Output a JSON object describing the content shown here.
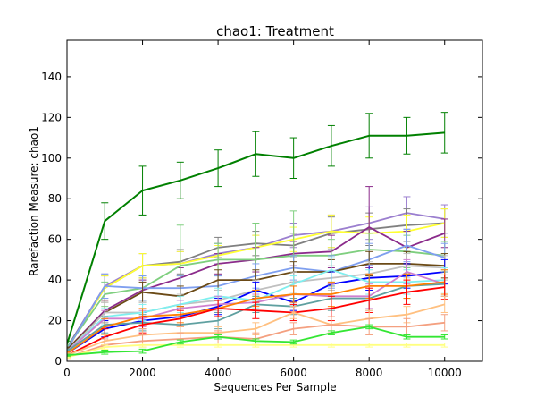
{
  "chart_data": {
    "type": "line",
    "title": "chao1: Treatment",
    "xlabel": "Sequences Per Sample",
    "ylabel": "Rarefaction Measure: chao1",
    "xlim": [
      0,
      11000
    ],
    "ylim": [
      0,
      158
    ],
    "xticks": [
      0,
      2000,
      4000,
      6000,
      8000,
      10000
    ],
    "yticks": [
      0,
      20,
      40,
      60,
      80,
      100,
      120,
      140
    ],
    "grid": false,
    "legend": "none",
    "x": [
      10,
      1000,
      2000,
      3000,
      4000,
      5000,
      6000,
      7000,
      8000,
      9000,
      10000
    ],
    "series": [
      {
        "color": "#008000",
        "values": [
          9,
          69,
          84,
          89,
          95,
          102,
          100,
          106,
          111,
          111,
          112.5
        ],
        "error": [
          1,
          9,
          12,
          9,
          9,
          11,
          10,
          10,
          11,
          9,
          10
        ]
      },
      {
        "color": "#9b7fcf",
        "values": [
          7,
          37,
          47,
          48,
          53,
          56,
          62,
          64,
          68,
          73,
          70
        ],
        "error": [
          1,
          6,
          6,
          6,
          5,
          6,
          6,
          8,
          8,
          8,
          7
        ]
      },
      {
        "color": "#808080",
        "values": [
          7,
          36,
          47,
          49,
          56,
          58,
          57,
          63,
          65,
          67,
          68
        ],
        "error": [
          1,
          6,
          6,
          6,
          5,
          6,
          6,
          8,
          8,
          8,
          7
        ]
      },
      {
        "color": "#ffff33",
        "values": [
          6,
          36,
          47,
          48,
          52,
          56,
          60,
          64,
          63,
          64,
          68
        ],
        "error": [
          1,
          6,
          6,
          6,
          5,
          6,
          6,
          8,
          8,
          8,
          7
        ]
      },
      {
        "color": "#8b2b8b",
        "values": [
          6,
          25,
          35,
          41,
          48,
          50,
          53,
          54,
          66,
          56,
          63
        ],
        "error": [
          1,
          5,
          5,
          5,
          5,
          6,
          6,
          8,
          20,
          8,
          7
        ]
      },
      {
        "color": "#7fcf7f",
        "values": [
          7,
          33,
          36,
          47,
          50,
          50,
          52,
          52,
          55,
          54,
          52
        ],
        "error": [
          1,
          6,
          6,
          20,
          8,
          18,
          22,
          8,
          8,
          8,
          7
        ]
      },
      {
        "color": "#7f9fef",
        "values": [
          6,
          37,
          36,
          36,
          37,
          42,
          46,
          44,
          50,
          57,
          51
        ],
        "error": [
          1,
          6,
          6,
          6,
          5,
          6,
          6,
          8,
          8,
          8,
          7
        ]
      },
      {
        "color": "#6b4a16",
        "values": [
          6,
          24,
          34,
          32,
          40,
          40,
          44,
          44,
          48,
          48,
          47
        ],
        "error": [
          1,
          5,
          5,
          5,
          5,
          5,
          5,
          6,
          6,
          6,
          6
        ]
      },
      {
        "color": "#c0c0c0",
        "values": [
          5,
          24,
          24,
          28,
          30,
          35,
          39,
          41,
          43,
          47,
          46
        ],
        "error": [
          1,
          5,
          5,
          5,
          5,
          5,
          5,
          6,
          6,
          6,
          6
        ]
      },
      {
        "color": "#0000ff",
        "values": [
          4,
          16,
          20,
          22,
          27,
          35,
          29,
          38,
          41,
          42,
          44
        ],
        "error": [
          1,
          4,
          4,
          4,
          4,
          4,
          4,
          6,
          6,
          6,
          6
        ]
      },
      {
        "color": "#7fefef",
        "values": [
          5,
          22,
          24,
          28,
          32,
          30,
          38,
          45,
          39,
          39,
          40
        ],
        "error": [
          1,
          4,
          4,
          4,
          4,
          4,
          4,
          6,
          6,
          6,
          6
        ]
      },
      {
        "color": "#cf7fcf",
        "values": [
          5,
          21,
          21,
          26,
          28,
          29,
          33,
          32,
          32,
          44,
          38
        ],
        "error": [
          1,
          4,
          4,
          4,
          4,
          4,
          4,
          6,
          6,
          6,
          6
        ]
      },
      {
        "color": "#5fa0a0",
        "values": [
          5,
          18,
          19,
          18,
          20,
          28,
          27,
          31,
          31,
          37,
          38
        ],
        "error": [
          1,
          4,
          4,
          4,
          4,
          4,
          4,
          6,
          6,
          6,
          6
        ]
      },
      {
        "color": "#ff7f00",
        "values": [
          4,
          17,
          22,
          23,
          26,
          31,
          33,
          33,
          37,
          37,
          39
        ],
        "error": [
          1,
          4,
          4,
          4,
          4,
          4,
          4,
          6,
          6,
          6,
          6
        ]
      },
      {
        "color": "#ff0000",
        "values": [
          3,
          12,
          18,
          21,
          26,
          25,
          24,
          26,
          30,
          34,
          36.5
        ],
        "error": [
          1,
          4,
          4,
          4,
          4,
          4,
          4,
          6,
          6,
          6,
          6
        ]
      },
      {
        "color": "#ffc080",
        "values": [
          3,
          10,
          13,
          14,
          14,
          16,
          24,
          18,
          21,
          23,
          28
        ],
        "error": [
          1,
          3,
          3,
          3,
          3,
          3,
          3,
          4,
          4,
          4,
          4
        ]
      },
      {
        "color": "#f4a080",
        "values": [
          2,
          8,
          10,
          11,
          12,
          11,
          16,
          18,
          17,
          17,
          19
        ],
        "error": [
          1,
          3,
          3,
          3,
          3,
          3,
          3,
          4,
          4,
          4,
          4
        ]
      },
      {
        "color": "#ffff80",
        "values": [
          2,
          7,
          8,
          8,
          8,
          8,
          8,
          8,
          8,
          8,
          8
        ],
        "error": [
          0.5,
          1,
          1,
          1,
          1,
          1,
          1,
          1,
          1,
          1,
          1
        ]
      },
      {
        "color": "#33e633",
        "values": [
          3,
          4.5,
          5,
          9.5,
          12,
          10,
          9.5,
          14,
          17,
          12,
          12
        ],
        "error": [
          0.5,
          1,
          1,
          1,
          1,
          1,
          1,
          1,
          1,
          1,
          1
        ]
      }
    ]
  }
}
